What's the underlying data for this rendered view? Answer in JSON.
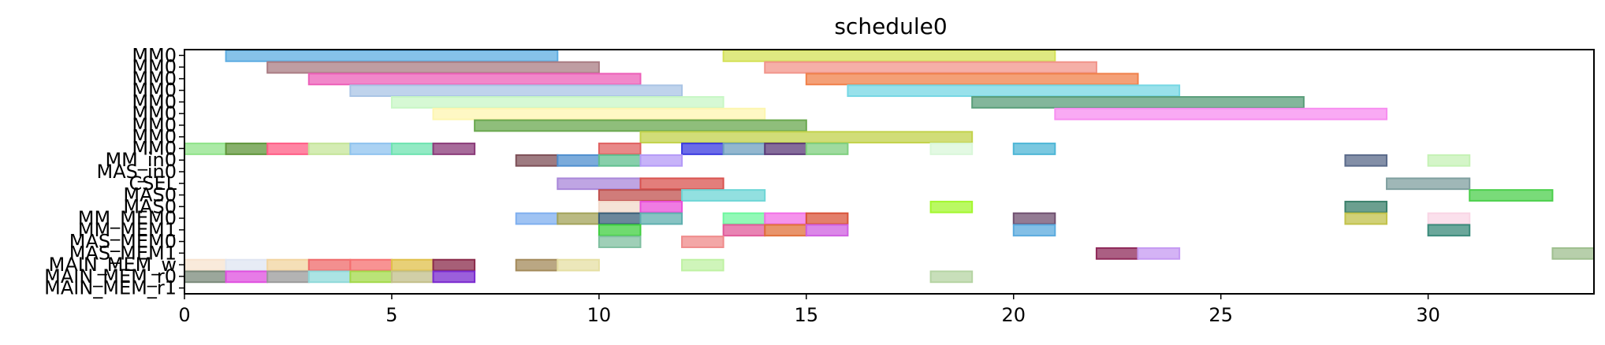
{
  "chart_data": {
    "type": "gantt",
    "title": "schedule0",
    "xlabel": "",
    "ylabel": "",
    "xlim": [
      0,
      34
    ],
    "x_ticks": [
      0,
      5,
      10,
      15,
      20,
      25,
      30
    ],
    "rows": [
      "MM0",
      "MM0",
      "MM0",
      "MM0",
      "MM0",
      "MM0",
      "MM0",
      "MM0",
      "MM0",
      "MM_in0",
      "MAS_in0",
      "CSEL",
      "MAS0",
      "MAS0",
      "MM_MEM0",
      "MM_MEM1",
      "MAS_MEM0",
      "MAS_MEM1",
      "MAIN_MEM_w",
      "MAIN_MEM_r0",
      "MAIN_MEM_r1"
    ],
    "tasks": [
      {
        "row": 0,
        "start": 1,
        "end": 9,
        "color": "#5dade2"
      },
      {
        "row": 0,
        "start": 13,
        "end": 21,
        "color": "#d4e157"
      },
      {
        "row": 1,
        "start": 2,
        "end": 10,
        "color": "#a97c83"
      },
      {
        "row": 1,
        "start": 14,
        "end": 22,
        "color": "#f1948a"
      },
      {
        "row": 2,
        "start": 3,
        "end": 11,
        "color": "#ec5fb8"
      },
      {
        "row": 2,
        "start": 15,
        "end": 23,
        "color": "#f0804a"
      },
      {
        "row": 3,
        "start": 4,
        "end": 12,
        "color": "#a9c4e5"
      },
      {
        "row": 3,
        "start": 16,
        "end": 24,
        "color": "#76d7e4"
      },
      {
        "row": 4,
        "start": 5,
        "end": 13,
        "color": "#c8f7c5"
      },
      {
        "row": 4,
        "start": 19,
        "end": 27,
        "color": "#5a9e7a"
      },
      {
        "row": 5,
        "start": 6,
        "end": 14,
        "color": "#fdf6b0"
      },
      {
        "row": 5,
        "start": 21,
        "end": 29,
        "color": "#f78ef0"
      },
      {
        "row": 6,
        "start": 7,
        "end": 15,
        "color": "#6aa84f"
      },
      {
        "row": 7,
        "start": 11,
        "end": 19,
        "color": "#c2d24b"
      },
      {
        "row": 8,
        "start": 0,
        "end": 1,
        "color": "#8fe388"
      },
      {
        "row": 8,
        "start": 1,
        "end": 2,
        "color": "#5f953a"
      },
      {
        "row": 8,
        "start": 2,
        "end": 3,
        "color": "#ff5c84"
      },
      {
        "row": 8,
        "start": 3,
        "end": 4,
        "color": "#c5e59a"
      },
      {
        "row": 8,
        "start": 4,
        "end": 5,
        "color": "#8fc3ef"
      },
      {
        "row": 8,
        "start": 5,
        "end": 6,
        "color": "#6ee3b0"
      },
      {
        "row": 8,
        "start": 6,
        "end": 7,
        "color": "#8a3a78"
      },
      {
        "row": 8,
        "start": 10,
        "end": 11,
        "color": "#e06060"
      },
      {
        "row": 8,
        "start": 12,
        "end": 13,
        "color": "#3a3ae0"
      },
      {
        "row": 8,
        "start": 13,
        "end": 14,
        "color": "#6d9fbf"
      },
      {
        "row": 8,
        "start": 14,
        "end": 15,
        "color": "#5b3a78"
      },
      {
        "row": 8,
        "start": 15,
        "end": 16,
        "color": "#7fcf7f"
      },
      {
        "row": 8,
        "start": 18,
        "end": 19,
        "color": "#d9f7d9"
      },
      {
        "row": 8,
        "start": 20,
        "end": 21,
        "color": "#4db6d6"
      },
      {
        "row": 9,
        "start": 8,
        "end": 9,
        "color": "#7d4f57"
      },
      {
        "row": 9,
        "start": 9,
        "end": 10,
        "color": "#4f8fcf"
      },
      {
        "row": 9,
        "start": 10,
        "end": 11,
        "color": "#5fbf8f"
      },
      {
        "row": 9,
        "start": 11,
        "end": 12,
        "color": "#b49af7"
      },
      {
        "row": 9,
        "start": 28,
        "end": 29,
        "color": "#5a6a8a"
      },
      {
        "row": 9,
        "start": 30,
        "end": 31,
        "color": "#c5f2b5"
      },
      {
        "row": 11,
        "start": 9,
        "end": 11,
        "color": "#a987d9"
      },
      {
        "row": 11,
        "start": 11,
        "end": 13,
        "color": "#d9534f"
      },
      {
        "row": 11,
        "start": 29,
        "end": 31,
        "color": "#7f9f9f"
      },
      {
        "row": 12,
        "start": 10,
        "end": 12,
        "color": "#c0504d"
      },
      {
        "row": 12,
        "start": 12,
        "end": 14,
        "color": "#6ed6d6"
      },
      {
        "row": 12,
        "start": 31,
        "end": 33,
        "color": "#4ccf4c"
      },
      {
        "row": 13,
        "start": 10,
        "end": 11,
        "color": "#f2d9c9"
      },
      {
        "row": 13,
        "start": 11,
        "end": 12,
        "color": "#e94fd9"
      },
      {
        "row": 13,
        "start": 18,
        "end": 19,
        "color": "#a3f72e"
      },
      {
        "row": 13,
        "start": 28,
        "end": 29,
        "color": "#3a7f6a"
      },
      {
        "row": 14,
        "start": 8,
        "end": 9,
        "color": "#7fafef"
      },
      {
        "row": 14,
        "start": 9,
        "end": 10,
        "color": "#a3a35a"
      },
      {
        "row": 14,
        "start": 10,
        "end": 11,
        "color": "#3a5f7a"
      },
      {
        "row": 14,
        "start": 11,
        "end": 12,
        "color": "#5fafaf"
      },
      {
        "row": 14,
        "start": 13,
        "end": 14,
        "color": "#6ef79f"
      },
      {
        "row": 14,
        "start": 14,
        "end": 15,
        "color": "#f26fe6"
      },
      {
        "row": 14,
        "start": 15,
        "end": 16,
        "color": "#d9543a"
      },
      {
        "row": 14,
        "start": 20,
        "end": 21,
        "color": "#6f4f6f"
      },
      {
        "row": 14,
        "start": 28,
        "end": 29,
        "color": "#c2c24a"
      },
      {
        "row": 14,
        "start": 30,
        "end": 31,
        "color": "#f9d5e5"
      },
      {
        "row": 15,
        "start": 10,
        "end": 11,
        "color": "#3fcf3f"
      },
      {
        "row": 15,
        "start": 13,
        "end": 14,
        "color": "#e05a9a"
      },
      {
        "row": 15,
        "start": 14,
        "end": 15,
        "color": "#e0703a"
      },
      {
        "row": 15,
        "start": 15,
        "end": 16,
        "color": "#cf5fe0"
      },
      {
        "row": 15,
        "start": 20,
        "end": 21,
        "color": "#5aaade"
      },
      {
        "row": 15,
        "start": 30,
        "end": 31,
        "color": "#3a8a7a"
      },
      {
        "row": 16,
        "start": 10,
        "end": 11,
        "color": "#7fbf9f"
      },
      {
        "row": 16,
        "start": 12,
        "end": 13,
        "color": "#ef8a8a"
      },
      {
        "row": 17,
        "start": 22,
        "end": 23,
        "color": "#8f2a5a"
      },
      {
        "row": 17,
        "start": 23,
        "end": 24,
        "color": "#c59af2"
      },
      {
        "row": 17,
        "start": 33,
        "end": 34,
        "color": "#9fbf8f"
      },
      {
        "row": 18,
        "start": 0,
        "end": 1,
        "color": "#f7e3cf"
      },
      {
        "row": 18,
        "start": 1,
        "end": 2,
        "color": "#dfe5f2"
      },
      {
        "row": 18,
        "start": 2,
        "end": 3,
        "color": "#f2d49f"
      },
      {
        "row": 18,
        "start": 3,
        "end": 4,
        "color": "#ef6a6a"
      },
      {
        "row": 18,
        "start": 4,
        "end": 5,
        "color": "#f56f6f"
      },
      {
        "row": 18,
        "start": 5,
        "end": 6,
        "color": "#e0c04a"
      },
      {
        "row": 18,
        "start": 6,
        "end": 7,
        "color": "#8a2a4a"
      },
      {
        "row": 18,
        "start": 8,
        "end": 9,
        "color": "#a38a5a"
      },
      {
        "row": 18,
        "start": 9,
        "end": 10,
        "color": "#e5dfa3"
      },
      {
        "row": 18,
        "start": 12,
        "end": 13,
        "color": "#bff2a3"
      },
      {
        "row": 19,
        "start": 0,
        "end": 1,
        "color": "#7a8a7a"
      },
      {
        "row": 19,
        "start": 1,
        "end": 2,
        "color": "#df4fdf"
      },
      {
        "row": 19,
        "start": 2,
        "end": 3,
        "color": "#9a9a9a"
      },
      {
        "row": 19,
        "start": 3,
        "end": 4,
        "color": "#8fd9d9"
      },
      {
        "row": 19,
        "start": 4,
        "end": 5,
        "color": "#a3d94a"
      },
      {
        "row": 19,
        "start": 5,
        "end": 6,
        "color": "#c2bf8a"
      },
      {
        "row": 19,
        "start": 6,
        "end": 7,
        "color": "#7a2acf"
      },
      {
        "row": 19,
        "start": 18,
        "end": 19,
        "color": "#b5d4a3"
      }
    ]
  }
}
